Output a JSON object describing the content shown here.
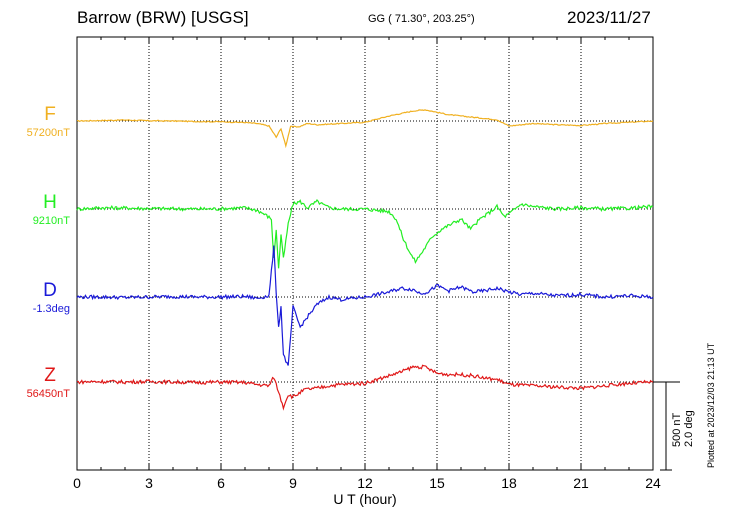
{
  "header": {
    "station": "Barrow (BRW)  [USGS]",
    "coords": "GG ( 71.30°, 203.25°)",
    "date": "2023/11/27"
  },
  "side_note": "Plotted at 2023/12/03 21:13 UT",
  "scale": {
    "line1": "500 nT",
    "line2": "2.0 deg"
  },
  "chart_data": {
    "type": "line",
    "xlabel": "U T (hour)",
    "xlim": [
      0,
      24
    ],
    "xticks": [
      0,
      3,
      6,
      9,
      12,
      15,
      18,
      21,
      24
    ],
    "grid": true,
    "series": [
      {
        "name": "F",
        "baseline_label": "57200nT",
        "color": "#f0b020",
        "x": [
          0,
          1,
          2,
          3,
          4,
          5,
          6,
          7,
          7.5,
          8,
          8.3,
          8.5,
          8.7,
          8.9,
          9.2,
          9.6,
          10,
          11,
          12,
          13,
          13.5,
          14,
          14.5,
          15,
          15.5,
          16,
          16.5,
          17,
          17.5,
          18,
          18.5,
          19,
          20,
          21,
          22,
          23,
          24
        ],
        "y": [
          0,
          2,
          4,
          1,
          0,
          -2,
          -3,
          -6,
          -10,
          -20,
          -65,
          -30,
          -100,
          -20,
          -25,
          -10,
          -15,
          -10,
          -5,
          20,
          30,
          40,
          45,
          35,
          25,
          20,
          15,
          10,
          5,
          -20,
          -15,
          -10,
          -15,
          -18,
          -10,
          -5,
          0
        ]
      },
      {
        "name": "H",
        "baseline_label": "9210nT",
        "color": "#22ee22",
        "x": [
          0,
          1,
          2,
          3,
          4,
          5,
          6,
          6.5,
          7,
          7.5,
          7.8,
          8.1,
          8.2,
          8.3,
          8.4,
          8.5,
          8.6,
          8.8,
          9.0,
          9.3,
          9.6,
          10,
          10.5,
          11,
          12,
          12.5,
          13,
          13.3,
          13.6,
          13.9,
          14.1,
          14.4,
          14.8,
          15.2,
          15.6,
          16.0,
          16.4,
          16.8,
          17.1,
          17.5,
          17.8,
          18,
          18.5,
          19,
          20,
          21,
          22,
          23,
          24
        ],
        "y": [
          0,
          5,
          4,
          2,
          1,
          0,
          1,
          3,
          5,
          -5,
          -20,
          -40,
          -200,
          -80,
          -240,
          -100,
          -200,
          -60,
          20,
          30,
          5,
          30,
          5,
          0,
          0,
          -5,
          -10,
          -40,
          -120,
          -180,
          -210,
          -170,
          -110,
          -80,
          -60,
          -40,
          -80,
          -40,
          -20,
          10,
          -30,
          -20,
          20,
          10,
          0,
          5,
          0,
          3,
          10
        ]
      },
      {
        "name": "D",
        "baseline_label": "-1.3deg",
        "color": "#1a1ad8",
        "x": [
          0,
          1,
          2,
          3,
          4,
          5,
          6,
          7,
          7.5,
          8,
          8.2,
          8.3,
          8.4,
          8.5,
          8.6,
          8.8,
          9.0,
          9.3,
          9.6,
          10,
          10.5,
          11,
          12,
          12.5,
          13,
          13.5,
          14,
          14.3,
          14.6,
          15,
          15.5,
          16,
          16.5,
          17,
          17.5,
          18,
          18.5,
          19,
          20,
          21,
          22,
          23,
          24
        ],
        "y": [
          0,
          0,
          -2,
          0,
          2,
          0,
          0,
          2,
          -5,
          5,
          200,
          20,
          -120,
          -40,
          -230,
          -280,
          -40,
          -120,
          -80,
          -30,
          0,
          -10,
          0,
          10,
          20,
          35,
          30,
          15,
          20,
          45,
          25,
          40,
          20,
          25,
          35,
          20,
          10,
          15,
          5,
          10,
          0,
          5,
          0
        ]
      },
      {
        "name": "Z",
        "baseline_label": "56450nT",
        "color": "#e01818",
        "x": [
          0,
          1,
          2,
          3,
          4,
          5,
          6,
          7,
          7.5,
          8,
          8.2,
          8.4,
          8.6,
          8.8,
          9.0,
          9.5,
          10,
          10.5,
          11,
          12,
          12.5,
          13,
          13.5,
          14,
          14.5,
          15,
          15.5,
          16,
          16.5,
          17,
          17.5,
          18,
          19,
          20,
          21,
          22,
          23,
          24
        ],
        "y": [
          0,
          2,
          0,
          2,
          0,
          -2,
          0,
          -2,
          -10,
          -15,
          20,
          -40,
          -100,
          -50,
          -60,
          -30,
          -25,
          -15,
          -10,
          -5,
          10,
          25,
          40,
          60,
          60,
          35,
          30,
          30,
          25,
          15,
          10,
          -10,
          -15,
          -20,
          -25,
          -15,
          -5,
          0
        ]
      }
    ]
  }
}
